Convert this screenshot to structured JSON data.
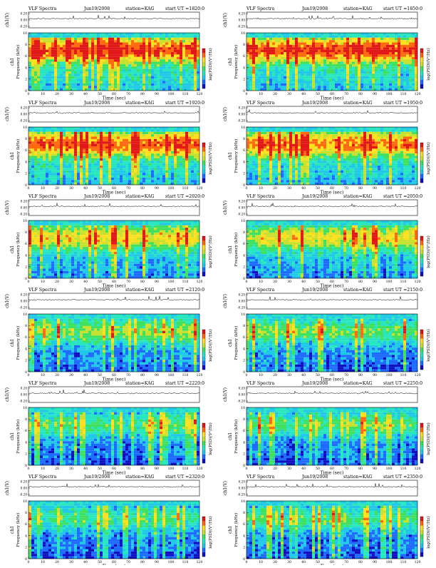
{
  "page": {
    "title": "VLF Spectra"
  },
  "colors": {
    "scale": [
      "#1010c0",
      "#1e6cff",
      "#22c8e8",
      "#28e6c0",
      "#40e060",
      "#c8e030",
      "#ffe020",
      "#ff6a10",
      "#e01818"
    ],
    "axis": "#000000",
    "panel_background": "#ffffff"
  },
  "chart_data": [
    {
      "type": "heatmap",
      "title": "VLF Spectra",
      "date": "Jun19/2008",
      "station": "station=KAG",
      "start": "start  UT =1820:0",
      "top_ylabel": "ch1(V)",
      "top_yticks": [
        "0.20",
        "0.00",
        "-0.20"
      ],
      "top_ylim": [
        -0.2,
        0.2
      ],
      "ylabel": "Frequency  (kHz)",
      "ylabel_prefix": "ch1",
      "yticks": [
        0,
        2,
        4,
        6,
        8,
        10
      ],
      "ylim": [
        0,
        10
      ],
      "xlabel": "Time  (sec)",
      "xticks": [
        0,
        10,
        20,
        30,
        40,
        50,
        60,
        70,
        80,
        90,
        100,
        110,
        120
      ],
      "xlim": [
        0,
        120
      ],
      "colorbar_label": "log(PSD)(V²/Hz)",
      "level": 0.74
    },
    {
      "type": "heatmap",
      "title": "VLF Spectra",
      "date": "Jun19/2008",
      "station": "station=KAG",
      "start": "start  UT =1850:0",
      "top_ylabel": "ch1(V)",
      "top_yticks": [
        "0.20",
        "0.00",
        "-0.20"
      ],
      "top_ylim": [
        -0.2,
        0.2
      ],
      "ylabel": "Frequency  (kHz)",
      "ylabel_prefix": "ch1",
      "yticks": [
        0,
        2,
        4,
        6,
        8,
        10
      ],
      "ylim": [
        0,
        10
      ],
      "xlabel": "Time  (sec)",
      "xticks": [
        0,
        10,
        20,
        30,
        40,
        50,
        60,
        70,
        80,
        90,
        100,
        110,
        120
      ],
      "xlim": [
        0,
        120
      ],
      "colorbar_label": "log(PSD)(V²/Hz)",
      "level": 0.76
    },
    {
      "type": "heatmap",
      "title": "VLF Spectra",
      "date": "Jun19/2008",
      "station": "station=KAG",
      "start": "start  UT =1920:0",
      "top_ylabel": "ch1(V)",
      "top_yticks": [
        "0.20",
        "0.00",
        "-0.20"
      ],
      "top_ylim": [
        -0.2,
        0.2
      ],
      "ylabel": "Frequency  (kHz)",
      "ylabel_prefix": "ch1",
      "yticks": [
        0,
        2,
        4,
        6,
        8,
        10
      ],
      "ylim": [
        0,
        10
      ],
      "xlabel": "Time  (sec)",
      "xticks": [
        0,
        10,
        20,
        30,
        40,
        50,
        60,
        70,
        80,
        90,
        100,
        110,
        120
      ],
      "xlim": [
        0,
        120
      ],
      "colorbar_label": "log(PSD)(V²/Hz)",
      "level": 0.72
    },
    {
      "type": "heatmap",
      "title": "VLF Spectra",
      "date": "Jun19/2008",
      "station": "station=KAG",
      "start": "start  UT =1950:0",
      "top_ylabel": "ch1(V)",
      "top_yticks": [
        "0.20",
        "0.00",
        "-0.20"
      ],
      "top_ylim": [
        -0.2,
        0.2
      ],
      "ylabel": "Frequency  (kHz)",
      "ylabel_prefix": "ch1",
      "yticks": [
        0,
        2,
        4,
        6,
        8,
        10
      ],
      "ylim": [
        0,
        10
      ],
      "xlabel": "Time  (sec)",
      "xticks": [
        0,
        10,
        20,
        30,
        40,
        50,
        60,
        70,
        80,
        90,
        100,
        110,
        120
      ],
      "xlim": [
        0,
        120
      ],
      "colorbar_label": "log(PSD)(V²/Hz)",
      "level": 0.7
    },
    {
      "type": "heatmap",
      "title": "VLF Spectra",
      "date": "Jun19/2008",
      "station": "station=KAG",
      "start": "start  UT =2020:0",
      "top_ylabel": "ch1(V)",
      "top_yticks": [
        "0.20",
        "0.00",
        "-0.20"
      ],
      "top_ylim": [
        -0.2,
        0.2
      ],
      "ylabel": "Frequency  (kHz)",
      "ylabel_prefix": "ch1",
      "yticks": [
        0,
        2,
        4,
        6,
        8,
        10
      ],
      "ylim": [
        0,
        10
      ],
      "xlabel": "Time  (sec)",
      "xticks": [
        0,
        10,
        20,
        30,
        40,
        50,
        60,
        70,
        80,
        90,
        100,
        110,
        120
      ],
      "xlim": [
        0,
        120
      ],
      "colorbar_label": "log(PSD)(V²/Hz)",
      "level": 0.58
    },
    {
      "type": "heatmap",
      "title": "VLF Spectra",
      "date": "Jun19/2008",
      "station": "station=KAG",
      "start": "start  UT =2050:0",
      "top_ylabel": "ch1(V)",
      "top_yticks": [
        "0.20",
        "0.00",
        "-0.20"
      ],
      "top_ylim": [
        -0.2,
        0.2
      ],
      "ylabel": "Frequency  (kHz)",
      "ylabel_prefix": "ch1",
      "yticks": [
        0,
        2,
        4,
        6,
        8,
        10
      ],
      "ylim": [
        0,
        10
      ],
      "xlabel": "Time  (sec)",
      "xticks": [
        0,
        10,
        20,
        30,
        40,
        50,
        60,
        70,
        80,
        90,
        100,
        110,
        120
      ],
      "xlim": [
        0,
        120
      ],
      "colorbar_label": "log(PSD)(V²/Hz)",
      "level": 0.56
    },
    {
      "type": "heatmap",
      "title": "VLF Spectra",
      "date": "Jun19/2008",
      "station": "station=KAG",
      "start": "start  UT =2120:0",
      "top_ylabel": "ch1(V)",
      "top_yticks": [
        "0.20",
        "0.00",
        "-0.20"
      ],
      "top_ylim": [
        -0.2,
        0.2
      ],
      "ylabel": "Frequency  (kHz)",
      "ylabel_prefix": "ch1",
      "yticks": [
        0,
        2,
        4,
        6,
        8,
        10
      ],
      "ylim": [
        0,
        10
      ],
      "xlabel": "Time  (sec)",
      "xticks": [
        0,
        10,
        20,
        30,
        40,
        50,
        60,
        70,
        80,
        90,
        100,
        110,
        120
      ],
      "xlim": [
        0,
        120
      ],
      "colorbar_label": "log(PSD)(V²/Hz)",
      "level": 0.46
    },
    {
      "type": "heatmap",
      "title": "VLF Spectra",
      "date": "Jun19/2008",
      "station": "station=KAG",
      "start": "start  UT =2150:0",
      "top_ylabel": "ch1(V)",
      "top_yticks": [
        "0.20",
        "0.00",
        "-0.20"
      ],
      "top_ylim": [
        -0.2,
        0.2
      ],
      "ylabel": "Frequency  (kHz)",
      "ylabel_prefix": "ch1",
      "yticks": [
        0,
        2,
        4,
        6,
        8,
        10
      ],
      "ylim": [
        0,
        10
      ],
      "xlabel": "Time  (sec)",
      "xticks": [
        0,
        10,
        20,
        30,
        40,
        50,
        60,
        70,
        80,
        90,
        100,
        110,
        120
      ],
      "xlim": [
        0,
        120
      ],
      "colorbar_label": "log(PSD)(V²/Hz)",
      "level": 0.44
    },
    {
      "type": "heatmap",
      "title": "VLF Spectra",
      "date": "Jun19/2008",
      "station": "station=KAG",
      "start": "start  UT =2220:0",
      "top_ylabel": "ch1(V)",
      "top_yticks": [
        "0.20",
        "0.00",
        "-0.20"
      ],
      "top_ylim": [
        -0.2,
        0.2
      ],
      "ylabel": "Frequency  (kHz)",
      "ylabel_prefix": "ch1",
      "yticks": [
        0,
        2,
        4,
        6,
        8,
        10
      ],
      "ylim": [
        0,
        10
      ],
      "xlabel": "Time  (sec)",
      "xticks": [
        0,
        10,
        20,
        30,
        40,
        50,
        60,
        70,
        80,
        90,
        100,
        110,
        120
      ],
      "xlim": [
        0,
        120
      ],
      "colorbar_label": "log(PSD)(V²/Hz)",
      "level": 0.4
    },
    {
      "type": "heatmap",
      "title": "VLF Spectra",
      "date": "Jun19/2008",
      "station": "station=KAG",
      "start": "start  UT =2250:0",
      "top_ylabel": "ch1(V)",
      "top_yticks": [
        "0.20",
        "0.00",
        "-0.20"
      ],
      "top_ylim": [
        -0.2,
        0.2
      ],
      "ylabel": "Frequency  (kHz)",
      "ylabel_prefix": "ch1",
      "yticks": [
        0,
        2,
        4,
        6,
        8,
        10
      ],
      "ylim": [
        0,
        10
      ],
      "xlabel": "Time  (sec)",
      "xticks": [
        0,
        10,
        20,
        30,
        40,
        50,
        60,
        70,
        80,
        90,
        100,
        110,
        120
      ],
      "xlim": [
        0,
        120
      ],
      "colorbar_label": "log(PSD)(V²/Hz)",
      "level": 0.4
    },
    {
      "type": "heatmap",
      "title": "VLF Spectra",
      "date": "Jun19/2008",
      "station": "station=KAG",
      "start": "start  UT =2320:0",
      "top_ylabel": "ch1(V)",
      "top_yticks": [
        "0.20",
        "0.00",
        "-0.20"
      ],
      "top_ylim": [
        -0.2,
        0.2
      ],
      "ylabel": "Frequency  (kHz)",
      "ylabel_prefix": "ch1",
      "yticks": [
        0,
        2,
        4,
        6,
        8,
        10
      ],
      "ylim": [
        0,
        10
      ],
      "xlabel": "Time  (sec)",
      "xticks": [
        0,
        10,
        20,
        30,
        40,
        50,
        60,
        70,
        80,
        90,
        100,
        110,
        120
      ],
      "xlim": [
        0,
        120
      ],
      "colorbar_label": "log(PSD)(V²/Hz)",
      "level": 0.38
    },
    {
      "type": "heatmap",
      "title": "VLF Spectra",
      "date": "Jun19/2008",
      "station": "station=KAG",
      "start": "start  UT =2350:0",
      "top_ylabel": "ch1(V)",
      "top_yticks": [
        "0.20",
        "0.00",
        "-0.20"
      ],
      "top_ylim": [
        -0.2,
        0.2
      ],
      "ylabel": "Frequency  (kHz)",
      "ylabel_prefix": "ch1",
      "yticks": [
        0,
        2,
        4,
        6,
        8,
        10
      ],
      "ylim": [
        0,
        10
      ],
      "xlabel": "Time  (sec)",
      "xticks": [
        0,
        10,
        20,
        30,
        40,
        50,
        60,
        70,
        80,
        90,
        100,
        110,
        120
      ],
      "xlim": [
        0,
        120
      ],
      "colorbar_label": "log(PSD)(V²/Hz)",
      "level": 0.4
    }
  ]
}
